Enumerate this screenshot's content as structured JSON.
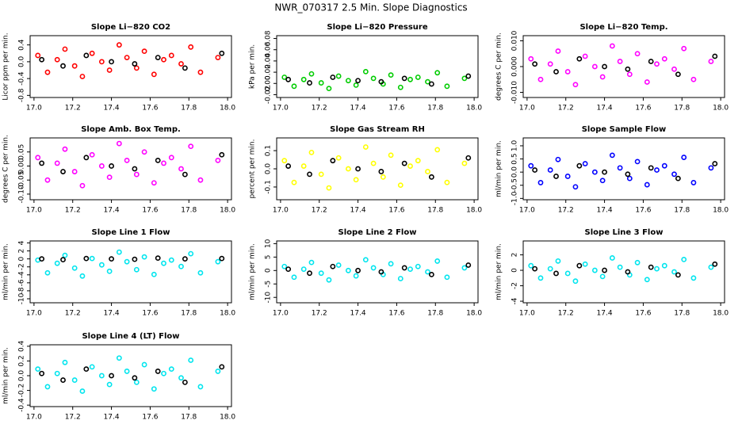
{
  "title": "NWR_070317  2.5 Min. Slope Diagnostics",
  "chart_data": [
    {
      "type": "scatter",
      "title": "Slope Li−820 CO2",
      "ylabel": "Licor ppm per min.",
      "xlim": [
        16.98,
        18.02
      ],
      "ylim": [
        -0.85,
        0.62
      ],
      "xticks": [
        {
          "value": 17,
          "label": "17.0"
        },
        17.2,
        17.4,
        17.6,
        17.8,
        {
          "value": 18,
          "label": "18.0"
        }
      ],
      "yticks": [
        -0.8,
        -0.4,
        {
          "value": 0,
          "label": "0.0"
        },
        0.4
      ],
      "series": [
        {
          "color": "#ff0000",
          "x": [
            17.02,
            17.07,
            17.12,
            17.16,
            17.21,
            17.25,
            17.3,
            17.35,
            17.39,
            17.44,
            17.48,
            17.53,
            17.57,
            17.62,
            17.67,
            17.71,
            17.76,
            17.81,
            17.86,
            17.95
          ],
          "values": [
            0.15,
            -0.25,
            0.05,
            0.3,
            -0.1,
            -0.35,
            0.2,
            0,
            -0.2,
            0.4,
            0.1,
            -0.15,
            0.25,
            -0.3,
            0.05,
            0.15,
            -0.05,
            0.35,
            -0.25,
            0.1
          ]
        },
        {
          "color": "#000000",
          "x": [
            17.04,
            17.15,
            17.27,
            17.4,
            17.52,
            17.64,
            17.78,
            17.97
          ],
          "values": [
            0.05,
            -0.1,
            0.15,
            0,
            -0.05,
            0.1,
            -0.15,
            0.2
          ]
        }
      ]
    },
    {
      "type": "scatter",
      "title": "Slope Li−820 Pressure",
      "ylabel": "kPa per min.",
      "xlim": [
        16.98,
        18.02
      ],
      "ylim": [
        -0.025,
        0.085
      ],
      "xticks": [
        {
          "value": 17,
          "label": "17.0"
        },
        17.2,
        17.4,
        17.6,
        17.8,
        {
          "value": 18,
          "label": "18.0"
        }
      ],
      "yticks": [
        -0.02,
        {
          "value": 0,
          "label": "0.00"
        },
        0.02,
        0.04,
        0.06,
        0.08
      ],
      "series": [
        {
          "color": "#00cc00",
          "x": [
            17.02,
            17.07,
            17.12,
            17.16,
            17.21,
            17.25,
            17.3,
            17.35,
            17.39,
            17.44,
            17.48,
            17.53,
            17.57,
            17.62,
            17.67,
            17.71,
            17.76,
            17.81,
            17.86,
            17.95
          ],
          "values": [
            0.011,
            -0.005,
            0.007,
            0.017,
            0.001,
            -0.009,
            0.013,
            0.005,
            -0.003,
            0.021,
            0.009,
            -0.001,
            0.015,
            -0.007,
            0.007,
            0.011,
            0.003,
            0.019,
            -0.005,
            0.009
          ]
        },
        {
          "color": "#000000",
          "x": [
            17.04,
            17.15,
            17.27,
            17.4,
            17.52,
            17.64,
            17.78,
            17.97
          ],
          "values": [
            0.007,
            0.001,
            0.011,
            0.005,
            0.003,
            0.009,
            -0.001,
            0.013
          ]
        }
      ]
    },
    {
      "type": "scatter",
      "title": "Slope Li−820 Temp.",
      "ylabel": "degrees C per min.",
      "xlim": [
        16.98,
        18.02
      ],
      "ylim": [
        -0.012,
        0.012
      ],
      "xticks": [
        {
          "value": 17,
          "label": "17.0"
        },
        17.2,
        17.4,
        17.6,
        17.8,
        {
          "value": 18,
          "label": "18.0"
        }
      ],
      "yticks": [
        {
          "value": -0.01,
          "label": "-0.010"
        },
        {
          "value": 0,
          "label": "0.000"
        },
        {
          "value": 0.01,
          "label": "0.010"
        }
      ],
      "series": [
        {
          "color": "#ff00ff",
          "x": [
            17.02,
            17.07,
            17.12,
            17.16,
            17.21,
            17.25,
            17.3,
            17.35,
            17.39,
            17.44,
            17.48,
            17.53,
            17.57,
            17.62,
            17.67,
            17.71,
            17.76,
            17.81,
            17.86,
            17.95
          ],
          "values": [
            0.003,
            -0.005,
            0.001,
            0.006,
            -0.002,
            -0.007,
            0.004,
            0,
            -0.004,
            0.008,
            0.002,
            -0.003,
            0.005,
            -0.006,
            0.001,
            0.003,
            -0.001,
            0.007,
            -0.005,
            0.002
          ]
        },
        {
          "color": "#000000",
          "x": [
            17.04,
            17.15,
            17.27,
            17.4,
            17.52,
            17.64,
            17.78,
            17.97
          ],
          "values": [
            0.001,
            -0.002,
            0.003,
            0,
            -0.001,
            0.002,
            -0.003,
            0.004
          ]
        }
      ]
    },
    {
      "type": "scatter",
      "title": "Slope Amb. Box Temp.",
      "ylabel": "degrees C per min.",
      "xlim": [
        16.98,
        18.02
      ],
      "ylim": [
        -0.12,
        0.1
      ],
      "xticks": [
        {
          "value": 17,
          "label": "17.0"
        },
        17.2,
        17.4,
        17.6,
        17.8,
        {
          "value": 18,
          "label": "18.0"
        }
      ],
      "yticks": [
        {
          "value": -0.1,
          "label": "-0.10"
        },
        -0.05,
        {
          "value": 0,
          "label": "0.00"
        },
        0.05
      ],
      "series": [
        {
          "color": "#ff00ff",
          "x": [
            17.02,
            17.07,
            17.12,
            17.16,
            17.21,
            17.25,
            17.3,
            17.35,
            17.39,
            17.44,
            17.48,
            17.53,
            17.57,
            17.62,
            17.67,
            17.71,
            17.76,
            17.81,
            17.86,
            17.95
          ],
          "values": [
            0.03,
            -0.05,
            0.01,
            0.06,
            -0.02,
            -0.07,
            0.04,
            0,
            -0.04,
            0.08,
            0.02,
            -0.03,
            0.05,
            -0.06,
            0.01,
            0.03,
            -0.01,
            0.07,
            -0.05,
            0.02
          ]
        },
        {
          "color": "#000000",
          "x": [
            17.04,
            17.15,
            17.27,
            17.4,
            17.52,
            17.64,
            17.78,
            17.97
          ],
          "values": [
            0.01,
            -0.02,
            0.03,
            0,
            -0.01,
            0.02,
            -0.03,
            0.04
          ]
        }
      ]
    },
    {
      "type": "scatter",
      "title": "Slope Gas Stream RH",
      "ylabel": "percent per min.",
      "xlim": [
        16.98,
        18.02
      ],
      "ylim": [
        -0.17,
        0.17
      ],
      "xticks": [
        {
          "value": 17,
          "label": "17.0"
        },
        17.2,
        17.4,
        17.6,
        17.8,
        {
          "value": 18,
          "label": "18.0"
        }
      ],
      "yticks": [
        -0.1,
        {
          "value": 0,
          "label": "0.0"
        },
        0.1
      ],
      "series": [
        {
          "color": "#ffff00",
          "x": [
            17.02,
            17.07,
            17.12,
            17.16,
            17.21,
            17.25,
            17.3,
            17.35,
            17.39,
            17.44,
            17.48,
            17.53,
            17.57,
            17.62,
            17.67,
            17.71,
            17.76,
            17.81,
            17.86,
            17.95
          ],
          "values": [
            0.045,
            -0.075,
            0.015,
            0.09,
            -0.03,
            -0.105,
            0.06,
            0,
            -0.06,
            0.12,
            0.03,
            -0.045,
            0.075,
            -0.09,
            0.015,
            0.045,
            -0.015,
            0.105,
            -0.075,
            0.03
          ]
        },
        {
          "color": "#000000",
          "x": [
            17.04,
            17.15,
            17.27,
            17.4,
            17.52,
            17.64,
            17.78,
            17.97
          ],
          "values": [
            0.015,
            -0.03,
            0.045,
            0,
            -0.015,
            0.03,
            -0.045,
            0.06
          ]
        }
      ]
    },
    {
      "type": "scatter",
      "title": "Slope Sample Flow",
      "ylabel": "ml/min per min.",
      "xlim": [
        16.98,
        18.02
      ],
      "ylim": [
        -1.05,
        1.3
      ],
      "xticks": [
        {
          "value": 17,
          "label": "17.0"
        },
        17.2,
        17.4,
        17.6,
        17.8,
        {
          "value": 18,
          "label": "18.0"
        }
      ],
      "yticks": [
        {
          "value": -1,
          "label": "-1.0"
        },
        -0.5,
        {
          "value": 0,
          "label": "0.0"
        },
        0.5,
        {
          "value": 1,
          "label": "1.0"
        }
      ],
      "series": [
        {
          "color": "#0000ff",
          "x": [
            17.02,
            17.07,
            17.12,
            17.16,
            17.21,
            17.25,
            17.3,
            17.35,
            17.39,
            17.44,
            17.48,
            17.53,
            17.57,
            17.62,
            17.67,
            17.71,
            17.76,
            17.81,
            17.86,
            17.95
          ],
          "values": [
            0.24,
            -0.4,
            0.08,
            0.48,
            -0.16,
            -0.56,
            0.32,
            0,
            -0.32,
            0.64,
            0.16,
            -0.24,
            0.4,
            -0.48,
            0.08,
            0.24,
            -0.08,
            0.56,
            -0.4,
            0.16
          ]
        },
        {
          "color": "#000000",
          "x": [
            17.04,
            17.15,
            17.27,
            17.4,
            17.52,
            17.64,
            17.78,
            17.97
          ],
          "values": [
            0.08,
            -0.16,
            0.24,
            0,
            -0.08,
            0.16,
            -0.24,
            0.32
          ]
        }
      ]
    },
    {
      "type": "scatter",
      "title": "Slope Line 1 Flow",
      "ylabel": "ml/min per min.",
      "xlim": [
        16.98,
        18.02
      ],
      "ylim": [
        -11,
        4.5
      ],
      "xticks": [
        {
          "value": 17,
          "label": "17.0"
        },
        17.2,
        17.4,
        17.6,
        17.8,
        {
          "value": 18,
          "label": "18.0"
        }
      ],
      "yticks": [
        -10,
        -8,
        -6,
        -4,
        -2,
        0,
        2,
        4
      ],
      "series": [
        {
          "color": "#00e5ee",
          "x": [
            17.02,
            17.07,
            17.12,
            17.16,
            17.21,
            17.25,
            17.3,
            17.35,
            17.39,
            17.44,
            17.48,
            17.53,
            17.57,
            17.62,
            17.67,
            17.71,
            17.76,
            17.81,
            17.86,
            17.95
          ],
          "values": [
            -0.3,
            -3.5,
            -1.1,
            0.9,
            -2.3,
            -4.3,
            0.1,
            -1.5,
            -3.1,
            1.7,
            -0.7,
            -2.7,
            0.5,
            -3.9,
            -1.1,
            -0.3,
            -1.9,
            1.3,
            -3.5,
            -0.7
          ]
        },
        {
          "color": "#000000",
          "x": [
            17.04,
            17.15,
            17.27,
            17.4,
            17.52,
            17.64,
            17.78,
            17.97
          ],
          "values": [
            0,
            -0.2,
            0.1,
            0,
            -0.1,
            0.2,
            0,
            0.1
          ]
        }
      ]
    },
    {
      "type": "scatter",
      "title": "Slope Line 2 Flow",
      "ylabel": "ml/min per min.",
      "xlim": [
        16.98,
        18.02
      ],
      "ylim": [
        -12,
        11
      ],
      "xticks": [
        {
          "value": 17,
          "label": "17.0"
        },
        17.2,
        17.4,
        17.6,
        17.8,
        {
          "value": 18,
          "label": "18.0"
        }
      ],
      "yticks": [
        -10,
        -5,
        0,
        5,
        10
      ],
      "series": [
        {
          "color": "#00e5ee",
          "x": [
            17.02,
            17.07,
            17.12,
            17.16,
            17.21,
            17.25,
            17.3,
            17.35,
            17.39,
            17.44,
            17.48,
            17.53,
            17.57,
            17.62,
            17.67,
            17.71,
            17.76,
            17.81,
            17.86,
            17.95
          ],
          "values": [
            1.5,
            -2.5,
            0.5,
            3,
            -1,
            -3.5,
            2,
            0,
            -2,
            4,
            1,
            -1.5,
            2.5,
            -3,
            0.5,
            1.5,
            -0.5,
            3.5,
            -2.5,
            1
          ]
        },
        {
          "color": "#000000",
          "x": [
            17.04,
            17.15,
            17.27,
            17.4,
            17.52,
            17.64,
            17.78,
            17.97
          ],
          "values": [
            0.5,
            -1,
            1.5,
            0,
            -0.5,
            1,
            -1.5,
            2
          ]
        }
      ]
    },
    {
      "type": "scatter",
      "title": "Slope Line 3 Flow",
      "ylabel": "ml/min per min.",
      "xlim": [
        16.98,
        18.02
      ],
      "ylim": [
        -4.2,
        3.8
      ],
      "xticks": [
        {
          "value": 17,
          "label": "17.0"
        },
        17.2,
        17.4,
        17.6,
        17.8,
        {
          "value": 18,
          "label": "18.0"
        }
      ],
      "yticks": [
        -4,
        -2,
        0,
        2
      ],
      "series": [
        {
          "color": "#00e5ee",
          "x": [
            17.02,
            17.07,
            17.12,
            17.16,
            17.21,
            17.25,
            17.3,
            17.35,
            17.39,
            17.44,
            17.48,
            17.53,
            17.57,
            17.62,
            17.67,
            17.71,
            17.76,
            17.81,
            17.86,
            17.95
          ],
          "values": [
            0.6,
            -1,
            0.2,
            1.2,
            -0.4,
            -1.4,
            0.8,
            0,
            -0.8,
            1.6,
            0.4,
            -0.6,
            1,
            -1.2,
            0.2,
            0.6,
            -0.2,
            1.4,
            -1,
            0.4
          ]
        },
        {
          "color": "#000000",
          "x": [
            17.04,
            17.15,
            17.27,
            17.4,
            17.52,
            17.64,
            17.78,
            17.97
          ],
          "values": [
            0.2,
            -0.4,
            0.6,
            0,
            -0.2,
            0.4,
            -0.6,
            0.8
          ]
        }
      ]
    },
    {
      "type": "scatter",
      "title": "Slope Line 4 (LT) Flow",
      "ylabel": "ml/min per min.",
      "xlim": [
        16.98,
        18.02
      ],
      "ylim": [
        -0.42,
        0.42
      ],
      "xticks": [
        {
          "value": 17,
          "label": "17.0"
        },
        17.2,
        17.4,
        17.6,
        17.8,
        {
          "value": 18,
          "label": "18.0"
        }
      ],
      "yticks": [
        -0.4,
        -0.2,
        {
          "value": 0,
          "label": "0.0"
        },
        0.2,
        0.4
      ],
      "series": [
        {
          "color": "#00e5ee",
          "x": [
            17.02,
            17.07,
            17.12,
            17.16,
            17.21,
            17.25,
            17.3,
            17.35,
            17.39,
            17.44,
            17.48,
            17.53,
            17.57,
            17.62,
            17.67,
            17.71,
            17.76,
            17.81,
            17.86,
            17.95
          ],
          "values": [
            0.09,
            -0.15,
            0.03,
            0.18,
            -0.06,
            -0.21,
            0.12,
            0,
            -0.12,
            0.24,
            0.06,
            -0.09,
            0.15,
            -0.18,
            0.03,
            0.09,
            -0.03,
            0.21,
            -0.15,
            0.06
          ]
        },
        {
          "color": "#000000",
          "x": [
            17.04,
            17.15,
            17.27,
            17.4,
            17.52,
            17.64,
            17.78,
            17.97
          ],
          "values": [
            0.03,
            -0.06,
            0.09,
            0,
            -0.03,
            0.06,
            -0.09,
            0.12
          ]
        }
      ]
    }
  ]
}
